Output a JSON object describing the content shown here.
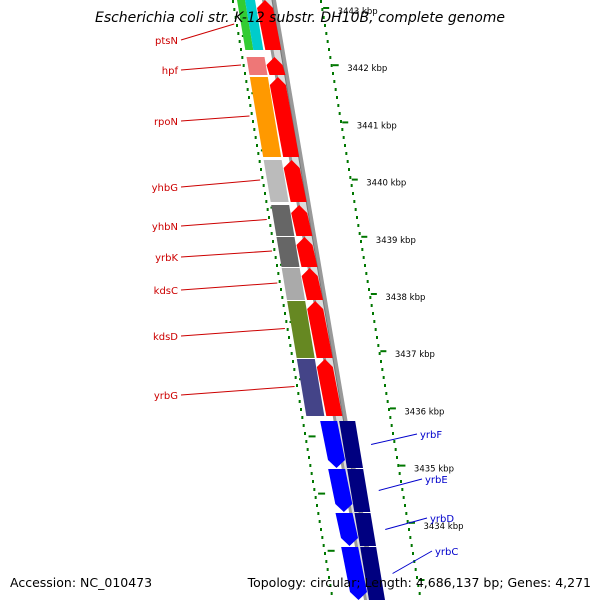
{
  "title": "Escherichia coli str. K-12 substr. DH10B, complete genome",
  "footer": {
    "accession_label": "Accession:",
    "accession": "NC_010473",
    "topology_label": "Topology:",
    "topology": "circular",
    "length_label": "Length:",
    "length": "4,686,137 bp",
    "genes_label": "Genes:",
    "genes": "4,271"
  },
  "colors": {
    "label_red": "#cc0000",
    "label_blue": "#0000cc",
    "tick_green": "#007700",
    "arrow_red": "#ff0000",
    "arrow_blue": "#0000ff",
    "arrow_navy": "#000080"
  },
  "genes_left": [
    {
      "name": "ptsN",
      "cog_color": "#33cc33",
      "cog_color2": "#00cccc"
    },
    {
      "name": "hpf",
      "cog_color": "#ee7777"
    },
    {
      "name": "rpoN",
      "cog_color": "#ff9900"
    },
    {
      "name": "yhbG",
      "cog_color": "#bbbbbb"
    },
    {
      "name": "yhbN",
      "cog_color": "#666666"
    },
    {
      "name": "yrbK",
      "cog_color": "#666666"
    },
    {
      "name": "kdsC",
      "cog_color": "#aaaaaa"
    },
    {
      "name": "kdsD",
      "cog_color": "#668822"
    },
    {
      "name": "yrbG",
      "cog_color": "#444488"
    }
  ],
  "genes_right": [
    {
      "name": "yrbF"
    },
    {
      "name": "yrbE"
    },
    {
      "name": "yrbD"
    },
    {
      "name": "yrbC"
    }
  ],
  "kbp_labels": [
    "3443 kbp",
    "3442 kbp",
    "3441 kbp",
    "3440 kbp",
    "3439 kbp",
    "3438 kbp",
    "3437 kbp",
    "3436 kbp",
    "3435 kbp",
    "3434 kbp"
  ]
}
